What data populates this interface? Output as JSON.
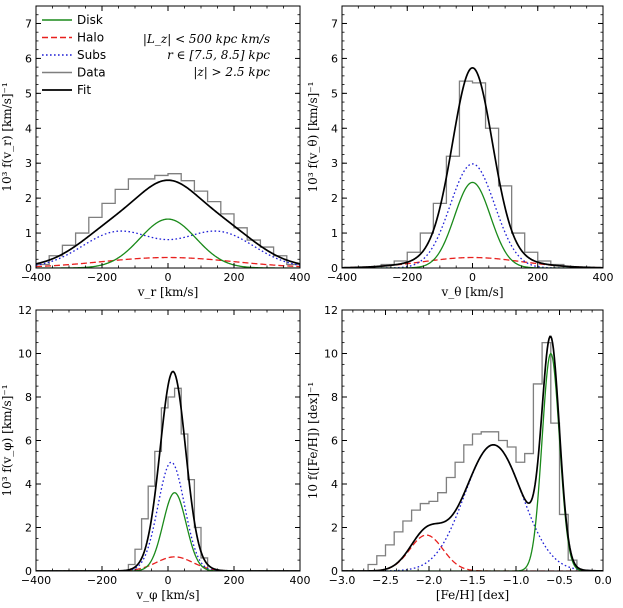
{
  "colors": {
    "disk": "#1a8a1a",
    "halo": "#e8201e",
    "subs": "#1f1fd6",
    "data": "#7f7f7f",
    "fit": "#000000"
  },
  "legend": [
    {
      "key": "disk",
      "label": "Disk",
      "style": "solid"
    },
    {
      "key": "halo",
      "label": "Halo",
      "style": "dashed"
    },
    {
      "key": "subs",
      "label": "Subs",
      "style": "dotted"
    },
    {
      "key": "data",
      "label": "Data",
      "style": "solid"
    },
    {
      "key": "fit",
      "label": "Fit",
      "style": "solid"
    }
  ],
  "annotation": [
    "|L_z| < 500 kpc km/s",
    "r ∈ [7.5, 8.5] kpc",
    "|z| > 2.5 kpc"
  ],
  "chart_data": [
    {
      "type": "line",
      "id": "vr",
      "xlabel": "v_r [km/s]",
      "ylabel": "10³ f(v_r) [km/s]⁻¹",
      "xlim": [
        -400,
        400
      ],
      "ylim": [
        0,
        7.5
      ],
      "xticks": [
        -400,
        -200,
        0,
        200,
        400
      ],
      "xtick_labels": [
        "−400",
        "−200",
        "0",
        "200",
        "400"
      ],
      "yticks": [
        0,
        1,
        2,
        3,
        4,
        5,
        6,
        7
      ],
      "ytick_labels": [
        "0",
        "1",
        "2",
        "3",
        "4",
        "5",
        "6",
        "7"
      ],
      "components": {
        "disk": {
          "kind": "gauss",
          "terms": [
            [
              1.4,
              0,
              85
            ]
          ]
        },
        "halo": {
          "kind": "gauss",
          "terms": [
            [
              0.3,
              0,
              200
            ]
          ]
        },
        "subs": {
          "kind": "gauss",
          "terms": [
            [
              1.03,
              -150,
              110
            ],
            [
              1.03,
              150,
              110
            ]
          ]
        }
      },
      "fit": {
        "kind": "gauss",
        "terms": [
          [
            1.4,
            0,
            85
          ],
          [
            0.3,
            0,
            200
          ],
          [
            1.03,
            -150,
            110
          ],
          [
            1.03,
            150,
            110
          ]
        ]
      },
      "hist": {
        "edges": [
          -400,
          -360,
          -320,
          -280,
          -240,
          -200,
          -160,
          -120,
          -80,
          -40,
          0,
          40,
          80,
          120,
          160,
          200,
          240,
          280,
          320,
          360,
          400
        ],
        "values": [
          0.1,
          0.35,
          0.65,
          1.0,
          1.45,
          1.85,
          2.25,
          2.55,
          2.55,
          2.65,
          2.7,
          2.5,
          2.2,
          1.9,
          1.55,
          1.15,
          0.8,
          0.6,
          0.35,
          0.1
        ]
      }
    },
    {
      "type": "line",
      "id": "vtheta",
      "xlabel": "v_θ [km/s]",
      "ylabel": "10³ f(v_θ) [km/s]⁻¹",
      "xlim": [
        -400,
        400
      ],
      "ylim": [
        0,
        7.5
      ],
      "xticks": [
        -400,
        -200,
        0,
        200,
        400
      ],
      "xtick_labels": [
        "−400",
        "−200",
        "0",
        "200",
        "400"
      ],
      "yticks": [
        0,
        1,
        2,
        3,
        4,
        5,
        6,
        7
      ],
      "ytick_labels": [
        "0",
        "1",
        "2",
        "3",
        "4",
        "5",
        "6",
        "7"
      ],
      "components": {
        "disk": {
          "kind": "gauss",
          "terms": [
            [
              2.45,
              0,
              55
            ]
          ]
        },
        "halo": {
          "kind": "gauss",
          "terms": [
            [
              0.3,
              0,
              150
            ]
          ]
        },
        "subs": {
          "kind": "gauss",
          "terms": [
            [
              2.98,
              0,
              68
            ]
          ]
        }
      },
      "fit": {
        "kind": "gauss",
        "terms": [
          [
            2.45,
            0,
            55
          ],
          [
            0.3,
            0,
            150
          ],
          [
            2.98,
            0,
            68
          ]
        ]
      },
      "hist": {
        "edges": [
          -280,
          -240,
          -200,
          -160,
          -120,
          -80,
          -40,
          0,
          40,
          80,
          120,
          160,
          200,
          240,
          280
        ],
        "values": [
          0.1,
          0.2,
          0.45,
          1.0,
          1.85,
          3.2,
          5.35,
          5.3,
          4.0,
          2.35,
          1.0,
          0.45,
          0.2,
          0.1
        ]
      }
    },
    {
      "type": "line",
      "id": "vphi",
      "xlabel": "v_φ [km/s]",
      "ylabel": "10³ f(v_φ) [km/s]⁻¹",
      "xlim": [
        -400,
        400
      ],
      "ylim": [
        0,
        12
      ],
      "xticks": [
        -400,
        -200,
        0,
        200,
        400
      ],
      "xtick_labels": [
        "−400",
        "−200",
        "0",
        "200",
        "400"
      ],
      "yticks": [
        0,
        2,
        4,
        6,
        8,
        10,
        12
      ],
      "ytick_labels": [
        "0",
        "2",
        "4",
        "6",
        "8",
        "10",
        "12"
      ],
      "components": {
        "disk": {
          "kind": "gauss",
          "terms": [
            [
              3.6,
              20,
              35
            ]
          ]
        },
        "halo": {
          "kind": "gauss",
          "terms": [
            [
              0.65,
              20,
              55
            ]
          ]
        },
        "subs": {
          "kind": "gauss",
          "terms": [
            [
              5.0,
              10,
              40
            ]
          ]
        }
      },
      "fit": {
        "kind": "gauss",
        "terms": [
          [
            3.6,
            20,
            35
          ],
          [
            0.65,
            20,
            55
          ],
          [
            5.0,
            10,
            40
          ]
        ]
      },
      "hist": {
        "edges": [
          -120,
          -100,
          -80,
          -60,
          -40,
          -20,
          0,
          20,
          40,
          60,
          80,
          100,
          120
        ],
        "values": [
          0.3,
          1.0,
          2.4,
          3.9,
          5.5,
          7.5,
          8.0,
          8.4,
          6.3,
          4.2,
          2.0,
          0.6
        ]
      }
    },
    {
      "type": "line",
      "id": "feh",
      "xlabel": "[Fe/H] [dex]",
      "ylabel": "10 f([Fe/H]) [dex]⁻¹",
      "xlim": [
        -3.0,
        0.0
      ],
      "ylim": [
        0,
        12
      ],
      "xticks": [
        -3.0,
        -2.5,
        -2.0,
        -1.5,
        -1.0,
        -0.5,
        0.0
      ],
      "xtick_labels": [
        "−3.0",
        "−2.5",
        "−2.0",
        "−1.5",
        "−1.0",
        "−0.5",
        "0.0"
      ],
      "yticks": [
        0,
        2,
        4,
        6,
        8,
        10,
        12
      ],
      "ytick_labels": [
        "0",
        "2",
        "4",
        "6",
        "8",
        "10",
        "12"
      ],
      "components": {
        "disk": {
          "kind": "gauss",
          "terms": [
            [
              10.0,
              -0.6,
              0.1
            ]
          ]
        },
        "halo": {
          "kind": "gauss",
          "terms": [
            [
              1.65,
              -2.03,
              0.19
            ]
          ]
        },
        "subs": {
          "kind": "gauss",
          "terms": [
            [
              5.8,
              -1.26,
              0.33
            ]
          ]
        }
      },
      "fit": {
        "kind": "gauss",
        "terms": [
          [
            10.0,
            -0.6,
            0.1
          ],
          [
            1.65,
            -2.03,
            0.19
          ],
          [
            5.8,
            -1.26,
            0.33
          ]
        ]
      },
      "hist": {
        "edges": [
          -2.7,
          -2.6,
          -2.5,
          -2.4,
          -2.3,
          -2.2,
          -2.1,
          -2.0,
          -1.9,
          -1.8,
          -1.7,
          -1.6,
          -1.5,
          -1.4,
          -1.3,
          -1.2,
          -1.1,
          -1.0,
          -0.9,
          -0.8,
          -0.7,
          -0.6,
          -0.5,
          -0.4,
          -0.3
        ],
        "values": [
          0.3,
          0.7,
          1.2,
          1.8,
          2.3,
          2.8,
          3.1,
          3.2,
          3.6,
          4.3,
          5.0,
          5.8,
          6.3,
          6.4,
          6.4,
          6.0,
          5.7,
          5.0,
          5.4,
          8.6,
          10.5,
          6.8,
          2.6,
          0.5
        ]
      }
    }
  ]
}
